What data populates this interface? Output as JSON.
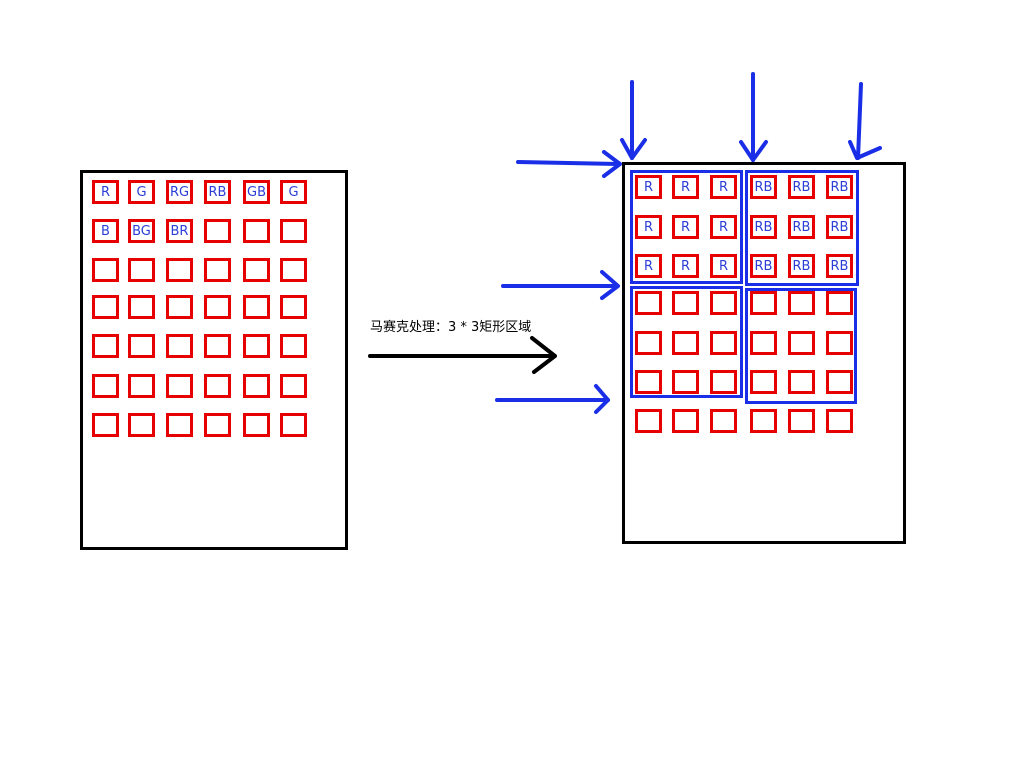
{
  "caption": "马赛克处理：3 * 3矩形区域",
  "colors": {
    "frame": "#000000",
    "cell": "#e60000",
    "label": "#2b3fd6",
    "group": "#1a2ee8",
    "arrow": "#1a2ee8"
  },
  "left_grid": {
    "rows": [
      [
        "R",
        "G",
        "RG",
        "RB",
        "GB",
        "G"
      ],
      [
        "B",
        "BG",
        "BR",
        "",
        "",
        ""
      ],
      [
        "",
        "",
        "",
        "",
        "",
        ""
      ],
      [
        "",
        "",
        "",
        "",
        "",
        ""
      ],
      [
        "",
        "",
        "",
        "",
        "",
        ""
      ],
      [
        "",
        "",
        "",
        "",
        "",
        ""
      ],
      [
        "",
        "",
        "",
        "",
        "",
        ""
      ]
    ]
  },
  "right_grid": {
    "rows": [
      [
        "R",
        "R",
        "R",
        "RB",
        "RB",
        "RB"
      ],
      [
        "R",
        "R",
        "R",
        "RB",
        "RB",
        "RB"
      ],
      [
        "R",
        "R",
        "R",
        "RB",
        "RB",
        "RB"
      ],
      [
        "",
        "",
        "",
        "",
        "",
        ""
      ],
      [
        "",
        "",
        "",
        "",
        "",
        ""
      ],
      [
        "",
        "",
        "",
        "",
        "",
        ""
      ],
      [
        "",
        "",
        "",
        "",
        "",
        ""
      ]
    ]
  }
}
